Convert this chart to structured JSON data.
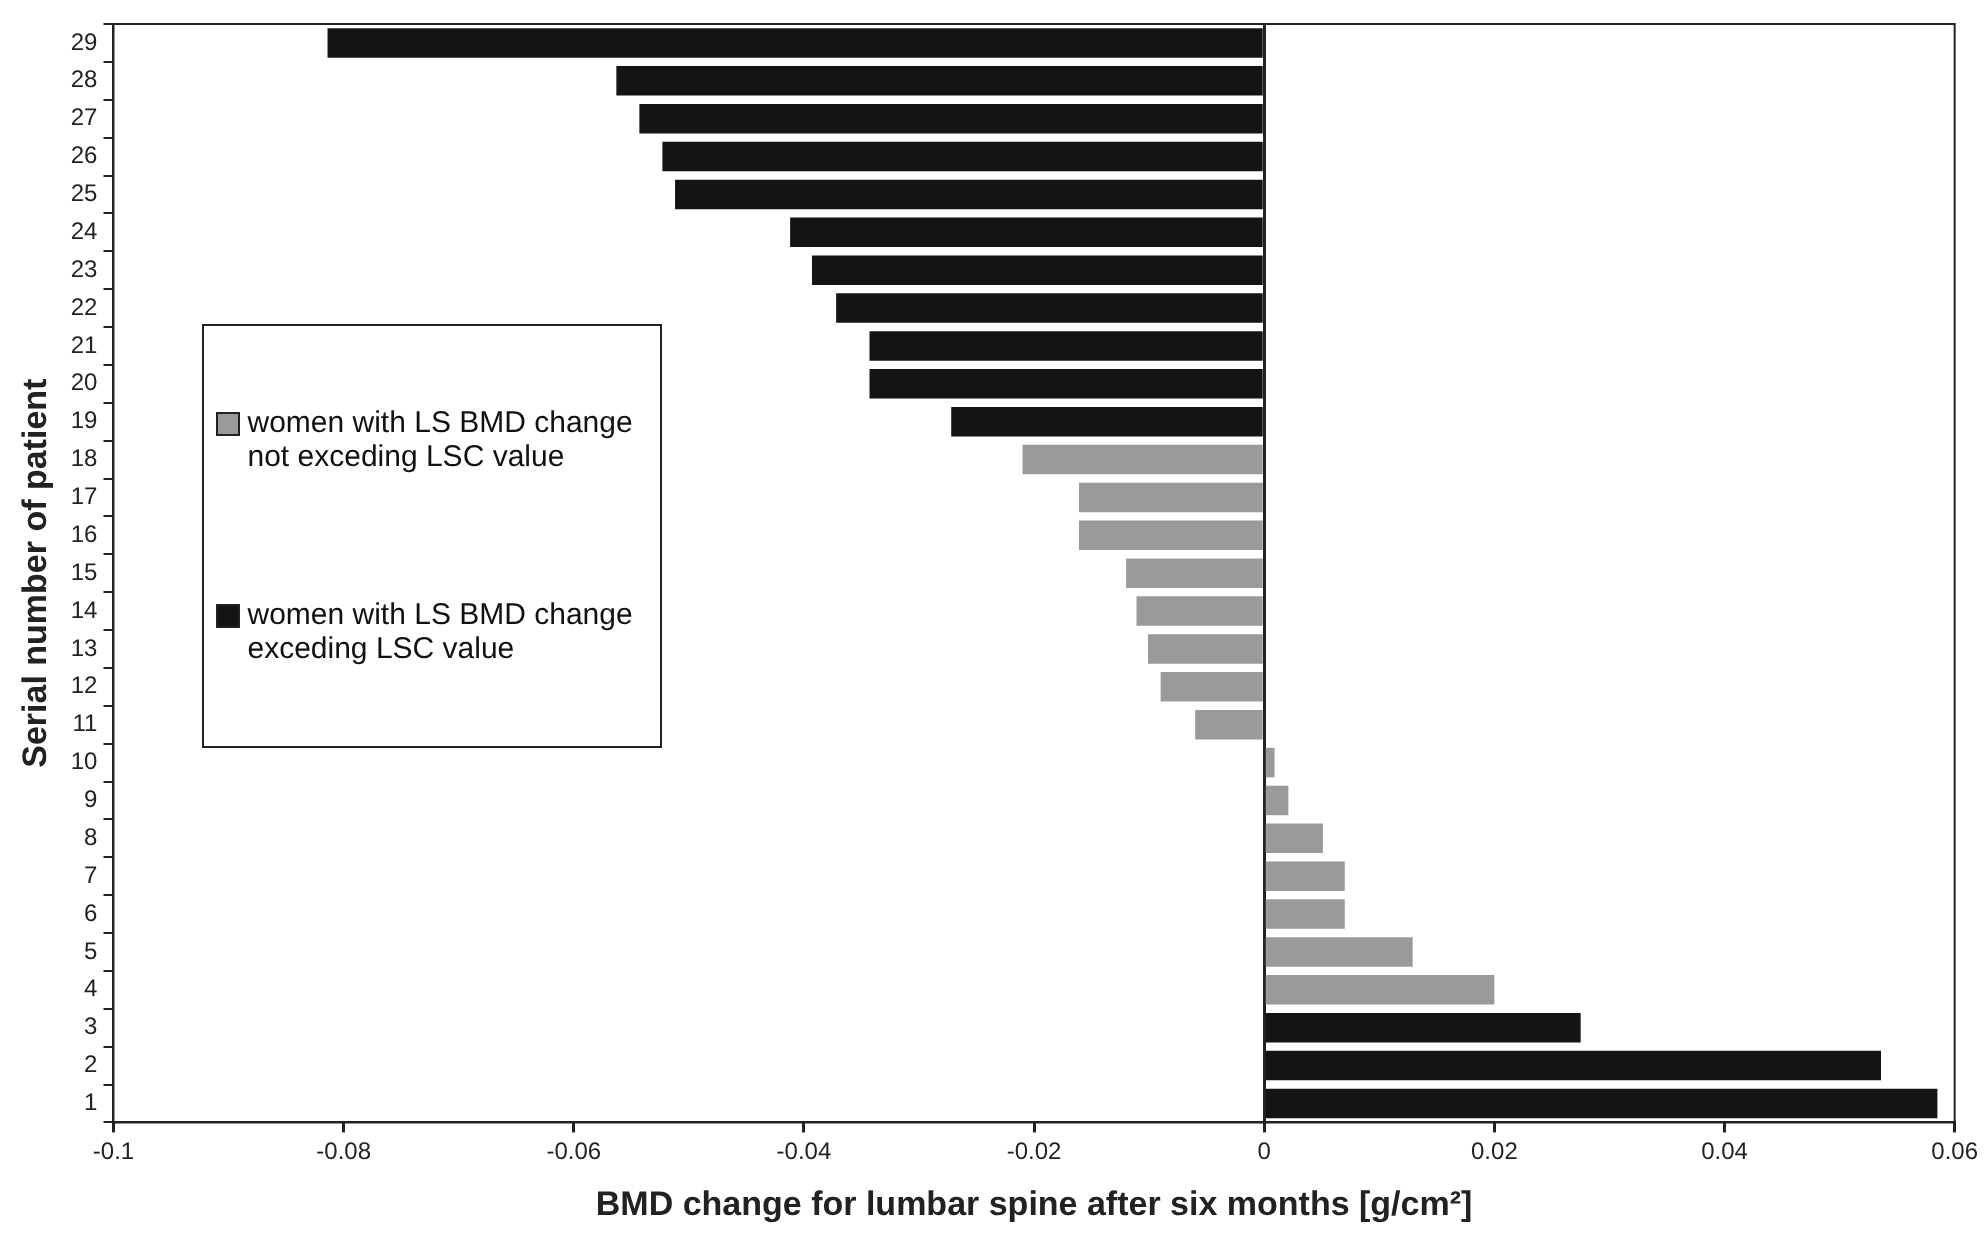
{
  "chart_data": {
    "type": "bar",
    "orientation": "horizontal",
    "stacked": true,
    "xlabel": "BMD change for lumbar spine after six months [g/cm²]",
    "ylabel": "Serial number of patient",
    "categories": [
      "29",
      "28",
      "27",
      "26",
      "25",
      "24",
      "23",
      "22",
      "21",
      "20",
      "19",
      "18",
      "17",
      "16",
      "15",
      "14",
      "13",
      "12",
      "11",
      "10",
      "9",
      "8",
      "7",
      "6",
      "5",
      "4",
      "3",
      "2",
      "1"
    ],
    "series": [
      {
        "name": "women with LS BMD change not exceding LSC value",
        "color": "#9a9a9a",
        "values": [
          null,
          null,
          null,
          null,
          null,
          null,
          null,
          null,
          null,
          null,
          null,
          -0.021,
          -0.0161,
          -0.0161,
          -0.012,
          -0.0111,
          -0.0101,
          -0.009,
          -0.006,
          0.0009,
          0.0021,
          0.0051,
          0.007,
          0.007,
          0.0129,
          0.02,
          null,
          null,
          null
        ]
      },
      {
        "name": "women with LS BMD change exceding LSC value",
        "color": "#141414",
        "values": [
          -0.0814,
          -0.0563,
          -0.0543,
          -0.0523,
          -0.0512,
          -0.0412,
          -0.0393,
          -0.0372,
          -0.0343,
          -0.0343,
          -0.0272,
          null,
          null,
          null,
          null,
          null,
          null,
          null,
          null,
          null,
          null,
          null,
          null,
          null,
          null,
          null,
          0.0275,
          0.0536,
          0.0585
        ]
      }
    ],
    "xlim": [
      -0.1,
      0.06
    ],
    "xticks": [
      -0.1,
      -0.08,
      -0.06,
      -0.04,
      -0.02,
      0,
      0.02,
      0.04,
      0.06
    ],
    "legend": "left"
  }
}
